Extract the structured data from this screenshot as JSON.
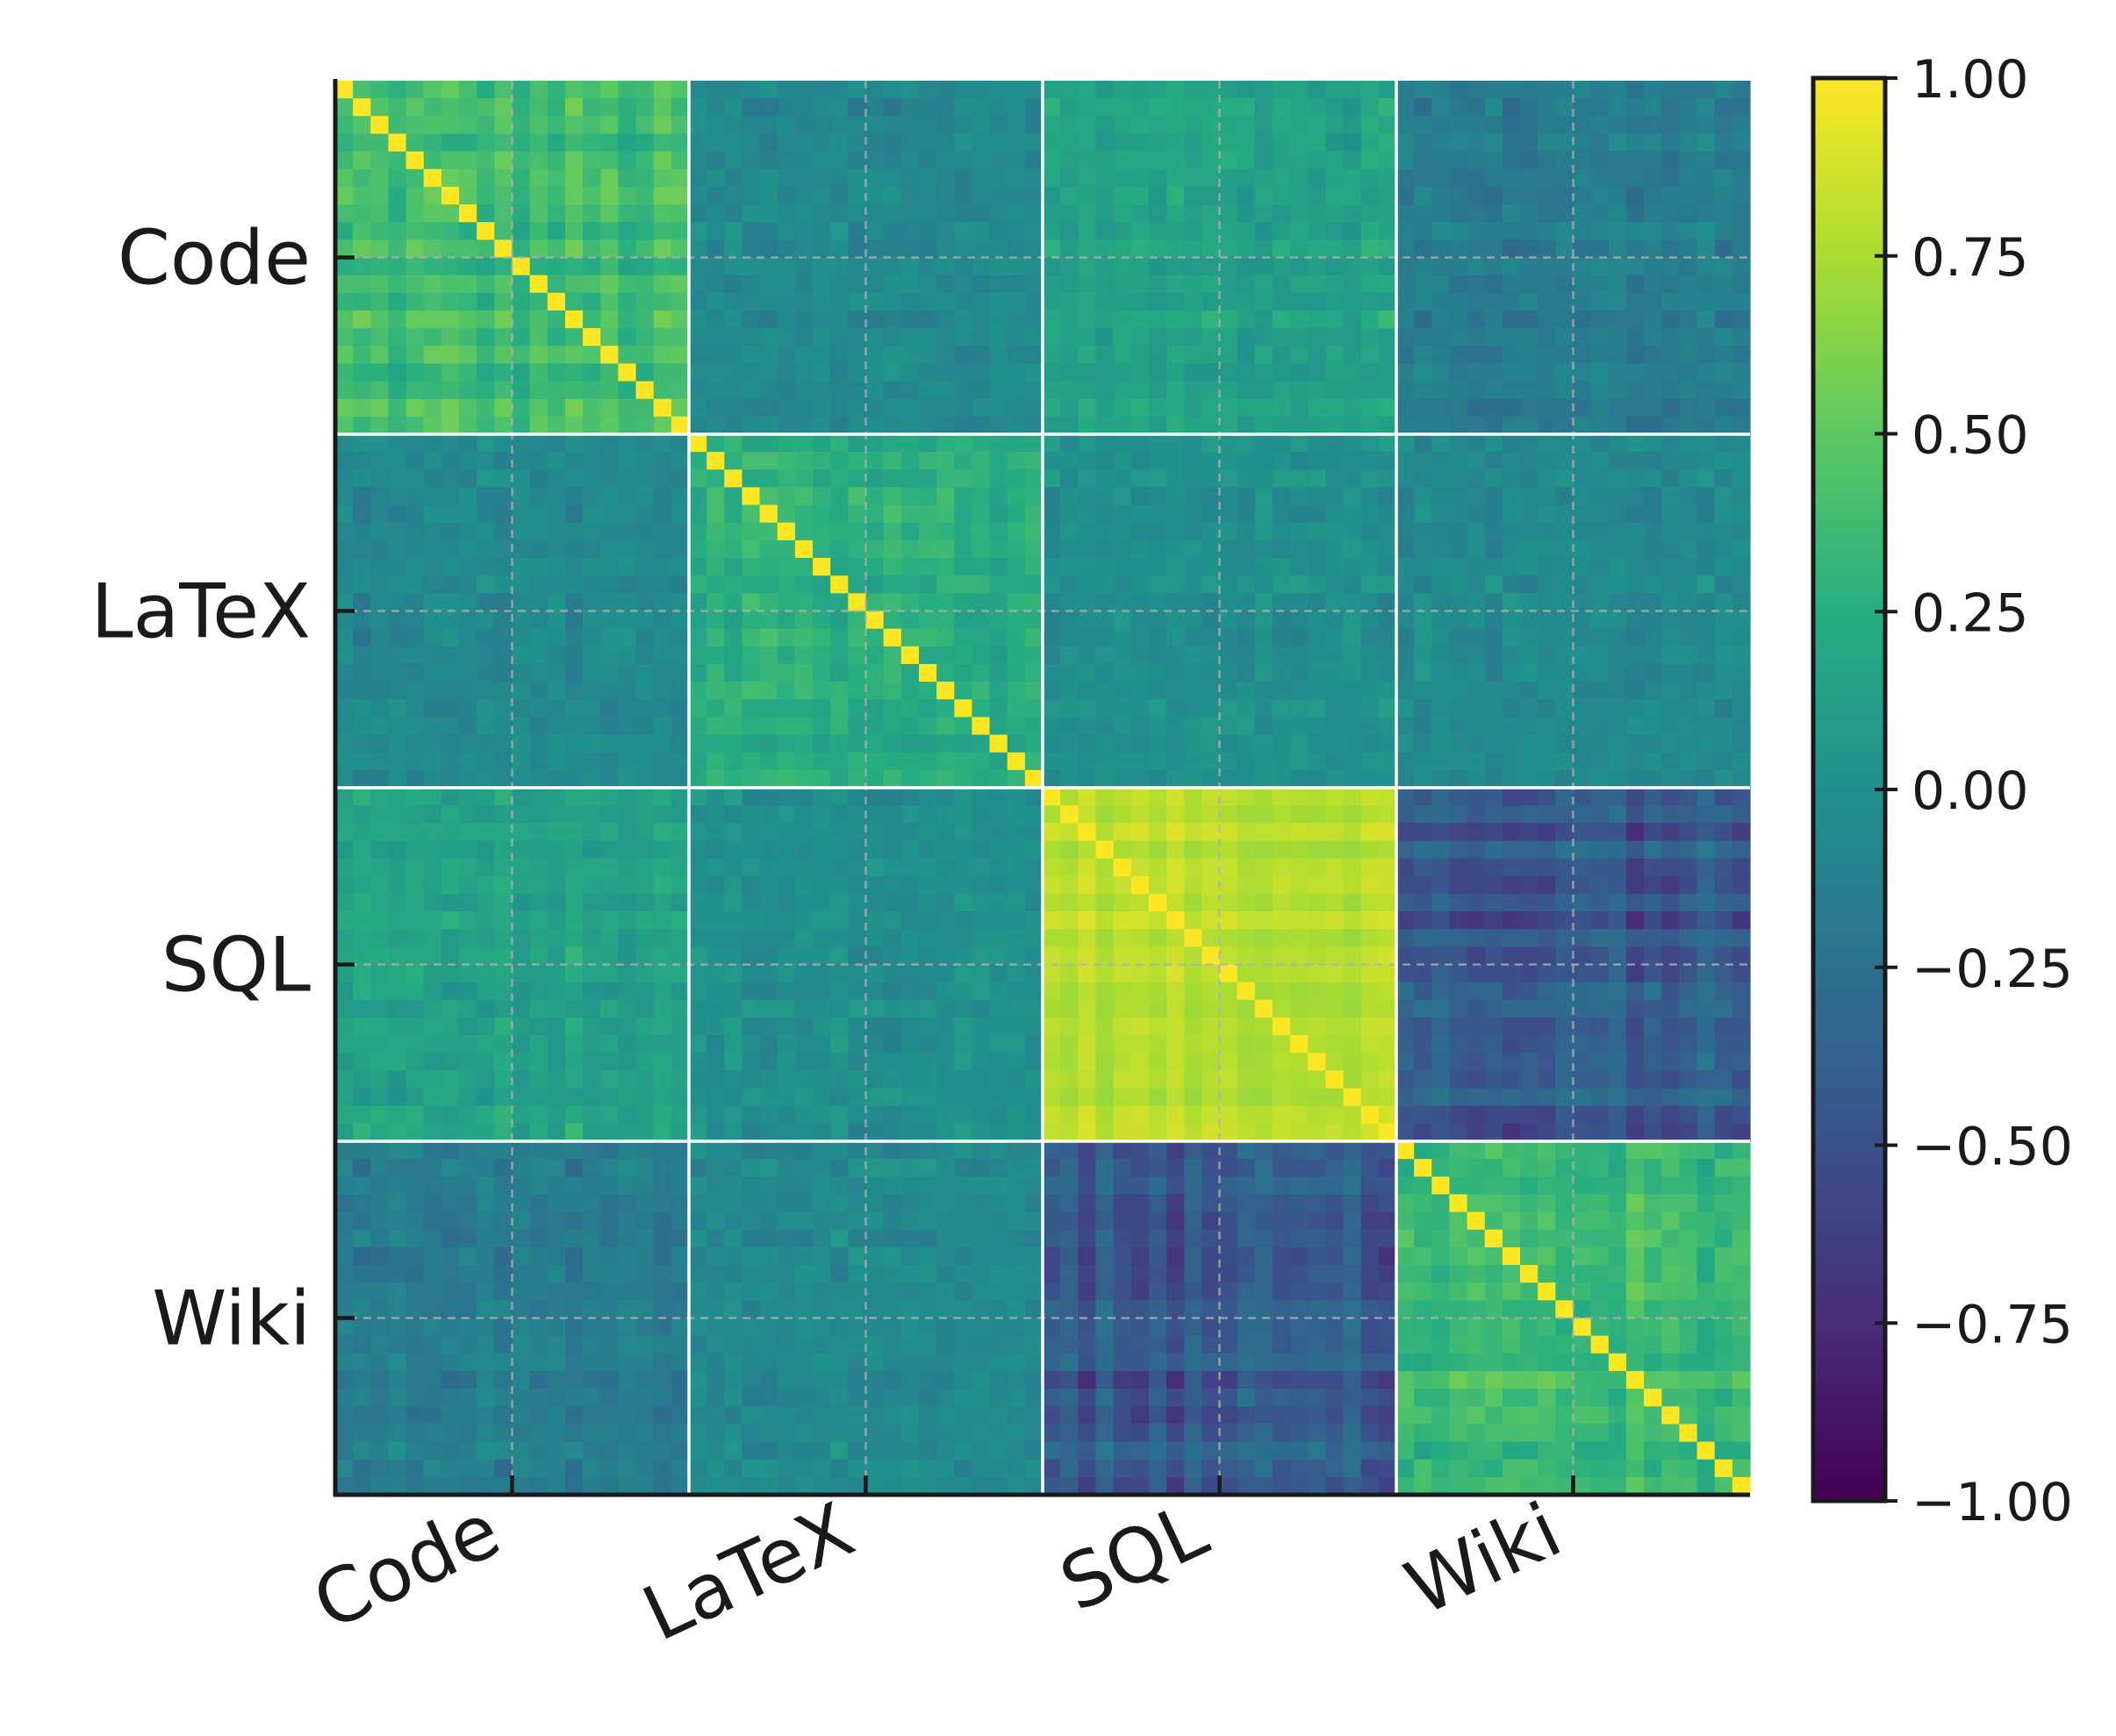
{
  "chart_data": {
    "type": "heatmap",
    "title": "",
    "xlabel": "",
    "ylabel": "",
    "groups": [
      "Code",
      "LaTeX",
      "SQL",
      "Wiki"
    ],
    "cells_per_group": 20,
    "x_tick_labels": [
      "Code",
      "LaTeX",
      "SQL",
      "Wiki"
    ],
    "y_tick_labels": [
      "Code",
      "LaTeX",
      "SQL",
      "Wiki"
    ],
    "colormap": "viridis",
    "value_range": [
      -1.0,
      1.0
    ],
    "diagonal_value": 1.0,
    "block_mean_values": [
      [
        0.35,
        -0.05,
        0.15,
        -0.15
      ],
      [
        -0.05,
        0.25,
        0.0,
        -0.05
      ],
      [
        0.15,
        0.0,
        0.8,
        -0.45
      ],
      [
        -0.15,
        -0.05,
        -0.45,
        0.35
      ]
    ],
    "colorbar": {
      "ticks": [
        1.0,
        0.75,
        0.5,
        0.25,
        0.0,
        -0.25,
        -0.5,
        -0.75,
        -1.0
      ],
      "tick_labels": [
        "1.00",
        "0.75",
        "0.50",
        "0.25",
        "0.00",
        "−0.25",
        "−0.50",
        "−0.75",
        "−1.00"
      ]
    },
    "grid": true
  },
  "colors": {
    "axis": "#1a1a1a",
    "block_separator": "#ffffff",
    "grid": "#b0b0b0"
  }
}
